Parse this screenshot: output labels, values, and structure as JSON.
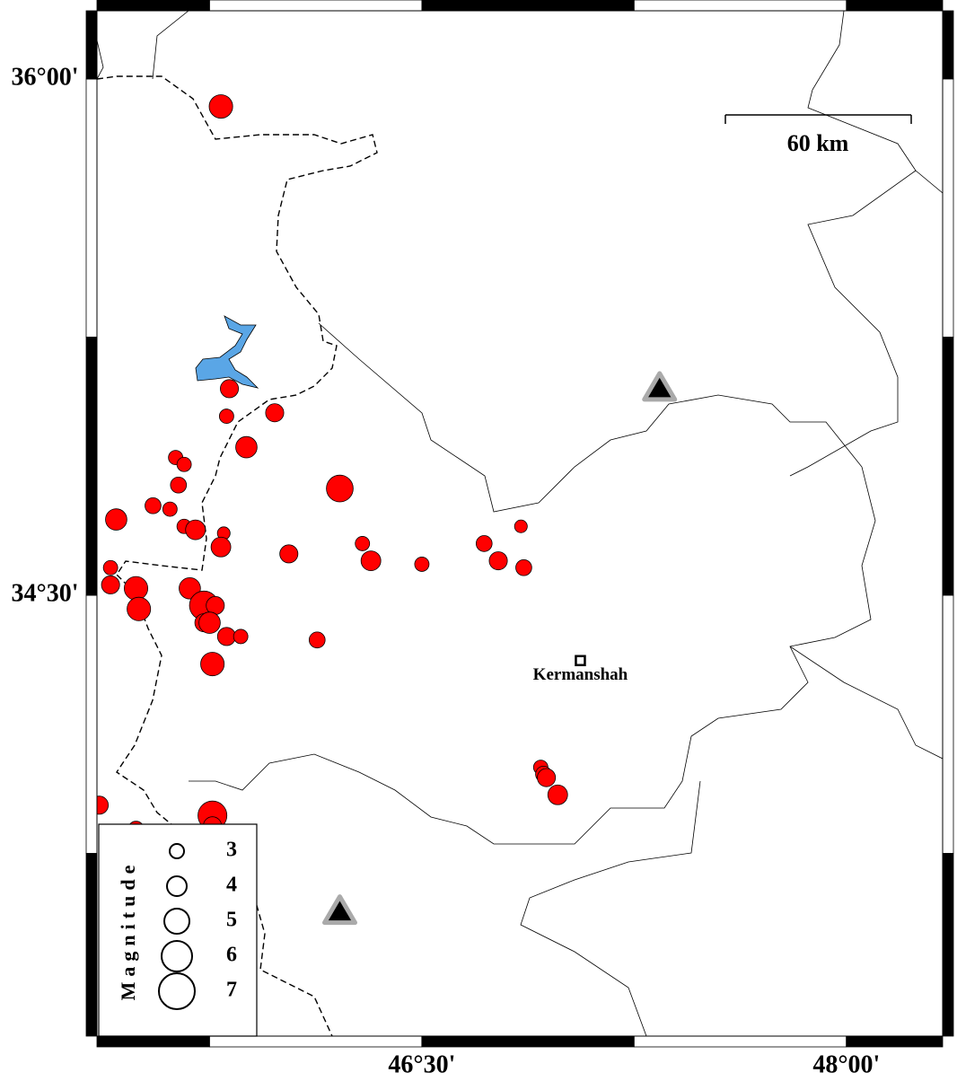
{
  "chart_data": {
    "type": "map",
    "xlim": [
      45.352,
      48.34
    ],
    "ylim": [
      33.219,
      36.198
    ],
    "xticks": [
      {
        "value": 46.5,
        "label": "46°30'"
      },
      {
        "value": 48,
        "label": "48°00'"
      }
    ],
    "yticks": [
      {
        "value": 34.5,
        "label": "34°30'"
      },
      {
        "value": 36,
        "label": "36°00'"
      }
    ],
    "events": {
      "color": "#ff0000",
      "lon": [
        45.79,
        45.82,
        45.81,
        45.98,
        45.88,
        45.63,
        45.66,
        45.64,
        46.21,
        45.42,
        45.55,
        45.61,
        45.66,
        45.7,
        45.8,
        45.79,
        46.03,
        46.29,
        46.32,
        46.5,
        46.72,
        46.85,
        46.77,
        46.86,
        45.4,
        45.4,
        45.49,
        45.5,
        45.68,
        45.73,
        45.77,
        45.73,
        45.75,
        45.81,
        45.86,
        46.13,
        45.76,
        46.92,
        46.93,
        46.94,
        46.98,
        45.36,
        45.76,
        45.49,
        45.76
      ],
      "lat": [
        35.92,
        35.1,
        35.02,
        35.03,
        34.93,
        34.9,
        34.88,
        34.82,
        34.81,
        34.72,
        34.76,
        34.75,
        34.7,
        34.69,
        34.68,
        34.64,
        34.62,
        34.65,
        34.6,
        34.59,
        34.65,
        34.7,
        34.6,
        34.58,
        34.58,
        34.53,
        34.52,
        34.46,
        34.52,
        34.47,
        34.47,
        34.42,
        34.42,
        34.38,
        34.38,
        34.37,
        34.3,
        34.0,
        33.98,
        33.97,
        33.92,
        33.89,
        33.86,
        33.82,
        33.83
      ],
      "magnitude": [
        4.7,
        3.7,
        3.0,
        3.7,
        4.3,
        3.0,
        3.0,
        3.3,
        5.3,
        4.3,
        3.3,
        3.0,
        3.0,
        4.0,
        2.7,
        4.0,
        3.7,
        3.0,
        4.0,
        3.0,
        3.3,
        2.7,
        3.7,
        3.3,
        3.0,
        3.7,
        4.7,
        4.7,
        4.3,
        5.7,
        3.7,
        3.7,
        4.3,
        3.7,
        3.0,
        3.3,
        4.7,
        3.0,
        3.3,
        3.7,
        4.0,
        3.7,
        5.7,
        3.3,
        3.7
      ]
    },
    "stations": {
      "lon": [
        47.34,
        46.21
      ],
      "lat": [
        35.1,
        33.58
      ]
    },
    "cities": [
      {
        "name": "Kermanshah",
        "lon": 47.06,
        "lat": 34.31
      }
    ],
    "scale_bar": {
      "label": "60 km"
    },
    "size_legend": {
      "title": "Magnitude",
      "values": [
        3,
        4,
        5,
        6,
        7
      ]
    }
  }
}
